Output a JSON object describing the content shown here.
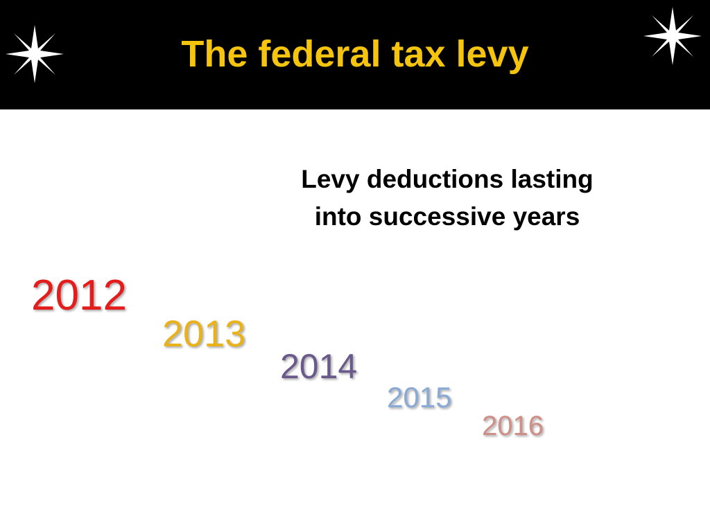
{
  "header": {
    "title": "The federal tax levy"
  },
  "subtitle": {
    "lines": [
      "Levy deductions lasting",
      "into successive years"
    ]
  },
  "years": [
    "2012",
    "2013",
    "2014",
    "2015",
    "2016"
  ]
}
